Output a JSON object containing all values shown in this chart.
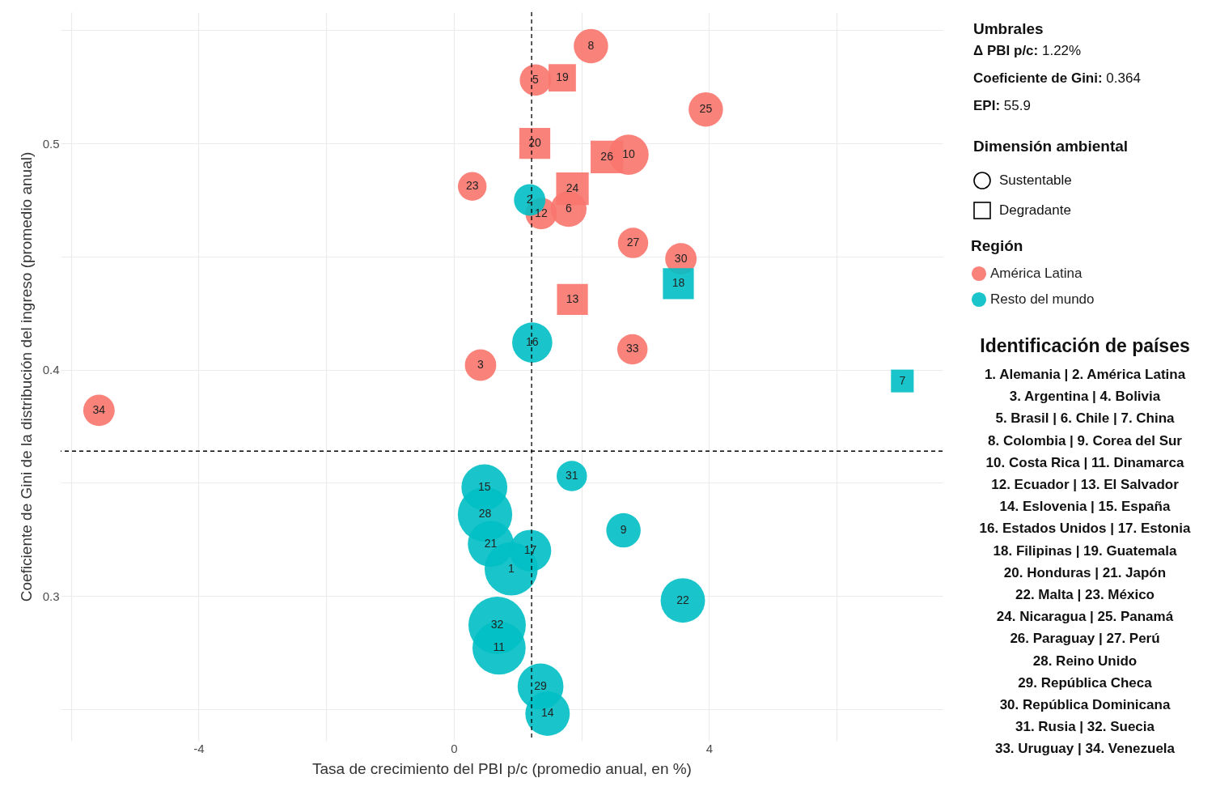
{
  "chart_data": {
    "type": "bubble",
    "xlabel": "Tasa de crecimiento del PBI p/c (promedio anual, en %)",
    "ylabel": "Coeficiente de Gini de la distribución del ingreso (promedio anual)",
    "legend_title": "Región",
    "series": [
      {
        "name": "América Latina",
        "color": "#f8766d",
        "marker": "circle",
        "x": [
          0.42,
          1.28,
          1.8,
          2.15,
          2.74,
          1.37,
          0.29,
          3.95,
          2.81,
          3.56,
          2.8,
          -5.56
        ],
        "values": [
          0.402,
          0.528,
          0.471,
          0.543,
          0.495,
          0.469,
          0.481,
          0.515,
          0.456,
          0.449,
          0.409,
          0.382
        ],
        "sizes": [
          0.3,
          0.3,
          0.39,
          0.36,
          0.49,
          0.3,
          0.25,
          0.36,
          0.28,
          0.3,
          0.28,
          0.3
        ]
      },
      {
        "name": "Resto del mundo",
        "color": "#00bfc4",
        "marker": "circle",
        "x": [
          0.9,
          1.19,
          2.66,
          0.71,
          1.47,
          0.48,
          1.23,
          1.2,
          0.58,
          3.59,
          0.49,
          1.36,
          1.85,
          0.68
        ],
        "values": [
          0.312,
          0.475,
          0.329,
          0.277,
          0.248,
          0.348,
          0.412,
          0.32,
          0.323,
          0.298,
          0.336,
          0.26,
          0.353,
          0.287
        ],
        "sizes": [
          0.86,
          0.3,
          0.36,
          0.86,
          0.6,
          0.64,
          0.49,
          0.53,
          0.64,
          0.6,
          0.9,
          0.64,
          0.28,
          1
        ]
      },
      {
        "color": "#00bfc4",
        "marker": "square",
        "x": [
          7.03,
          3.52
        ],
        "values": [
          0.395,
          0.438
        ],
        "sizes": [
          0.2,
          0.37
        ]
      },
      {
        "color": "#f8766d",
        "marker": "square",
        "x": [
          1.86,
          1.7,
          1.27,
          1.86,
          2.4
        ],
        "values": [
          0.431,
          0.529,
          0.5,
          0.48,
          0.494
        ],
        "sizes": [
          0.37,
          0.29,
          0.37,
          0.41,
          0.41
        ]
      }
    ],
    "xlim": [
      -6.16,
      7.66
    ],
    "ylim": [
      0.236,
      0.558
    ],
    "xticks": [
      {
        "value": -6,
        "label": null
      },
      -4,
      {
        "value": -2,
        "label": null
      },
      0,
      {
        "value": 2,
        "label": null
      },
      4,
      {
        "value": 6,
        "label": null
      }
    ],
    "yticks": [
      {
        "value": 0.25,
        "label": null
      },
      0.3,
      {
        "value": 0.35,
        "label": null
      },
      0.4,
      {
        "value": 0.45,
        "label": null
      },
      0.5,
      {
        "value": 0.55,
        "label": null
      }
    ],
    "grid": true,
    "legend": "right",
    "ref_lines": [
      {
        "axis": "x",
        "value": 1.22,
        "line_style": "dashed",
        "color": "#000000"
      },
      {
        "axis": "y",
        "value": 0.364,
        "line_style": "dashed",
        "color": "#000000"
      }
    ],
    "annotations": [
      "Umbrales",
      "Δ PBI p/c: 1.22%",
      "Coeficiente de Gini: 0.364",
      "EPI: 55.9",
      "Dimensión ambiental",
      "Sustentable",
      "Degradante",
      "Identificación de países",
      "1. Alemania | 2. América Latina",
      "3. Argentina | 4. Bolivia",
      "5. Brasil | 6. Chile | 7. China",
      "8. Colombia | 9. Corea del Sur",
      "10. Costa Rica | 11. Dinamarca",
      "12. Ecuador | 13. El Salvador",
      "14. Eslovenia | 15. España",
      "16. Estados Unidos | 17. Estonia",
      "18. Filipinas | 19. Guatemala",
      "20. Honduras | 21. Japón",
      "22. Malta | 23. México",
      "24. Nicaragua | 25. Panamá",
      "26. Paraguay | 27. Perú",
      "28. Reino Unido",
      "29. República Checa",
      "30. República Dominicana",
      "31. Rusia | 32. Suecia",
      "33. Uruguay | 34. Venezuela",
      {
        "text": "3",
        "x": 0.42,
        "y": 0.402
      },
      {
        "text": "5",
        "x": 1.28,
        "y": 0.528
      },
      {
        "text": "6",
        "x": 1.8,
        "y": 0.471
      },
      {
        "text": "8",
        "x": 2.15,
        "y": 0.543
      },
      {
        "text": "10",
        "x": 2.74,
        "y": 0.495
      },
      {
        "text": "12",
        "x": 1.37,
        "y": 0.469
      },
      {
        "text": "13",
        "x": 1.86,
        "y": 0.431
      },
      {
        "text": "19",
        "x": 1.7,
        "y": 0.529
      },
      {
        "text": "20",
        "x": 1.27,
        "y": 0.5
      },
      {
        "text": "23",
        "x": 0.29,
        "y": 0.481
      },
      {
        "text": "24",
        "x": 1.86,
        "y": 0.48
      },
      {
        "text": "25",
        "x": 3.95,
        "y": 0.515
      },
      {
        "text": "26",
        "x": 2.4,
        "y": 0.494
      },
      {
        "text": "27",
        "x": 2.81,
        "y": 0.456
      },
      {
        "text": "30",
        "x": 3.56,
        "y": 0.449
      },
      {
        "text": "33",
        "x": 2.8,
        "y": 0.409
      },
      {
        "text": "34",
        "x": -5.56,
        "y": 0.382
      },
      {
        "text": "1",
        "x": 0.9,
        "y": 0.312
      },
      {
        "text": "2",
        "x": 1.19,
        "y": 0.475
      },
      {
        "text": "7",
        "x": 7.03,
        "y": 0.395
      },
      {
        "text": "9",
        "x": 2.66,
        "y": 0.329
      },
      {
        "text": "11",
        "x": 0.71,
        "y": 0.277
      },
      {
        "text": "14",
        "x": 1.47,
        "y": 0.248
      },
      {
        "text": "15",
        "x": 0.48,
        "y": 0.348
      },
      {
        "text": "16",
        "x": 1.23,
        "y": 0.412
      },
      {
        "text": "17",
        "x": 1.2,
        "y": 0.32
      },
      {
        "text": "18",
        "x": 3.52,
        "y": 0.438
      },
      {
        "text": "21",
        "x": 0.58,
        "y": 0.323
      },
      {
        "text": "22",
        "x": 3.59,
        "y": 0.298
      },
      {
        "text": "28",
        "x": 0.49,
        "y": 0.336
      },
      {
        "text": "29",
        "x": 1.36,
        "y": 0.26
      },
      {
        "text": "31",
        "x": 1.85,
        "y": 0.353
      },
      {
        "text": "32",
        "x": 0.68,
        "y": 0.287
      }
    ]
  }
}
